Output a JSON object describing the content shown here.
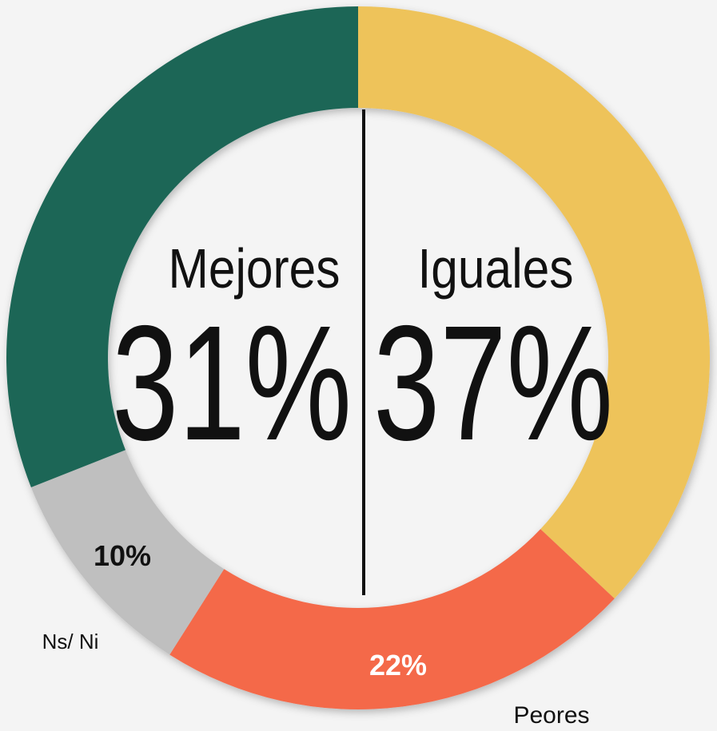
{
  "chart_data": {
    "type": "pie",
    "categories": [
      "Iguales",
      "Peores",
      "Ns/ Ni",
      "Mejores"
    ],
    "values": [
      37,
      22,
      10,
      31
    ],
    "value_labels": [
      "37%",
      "22%",
      "10%",
      "31%"
    ],
    "colors": [
      "#eec35a",
      "#f4694a",
      "#bfbfbf",
      "#1e6656"
    ]
  }
}
